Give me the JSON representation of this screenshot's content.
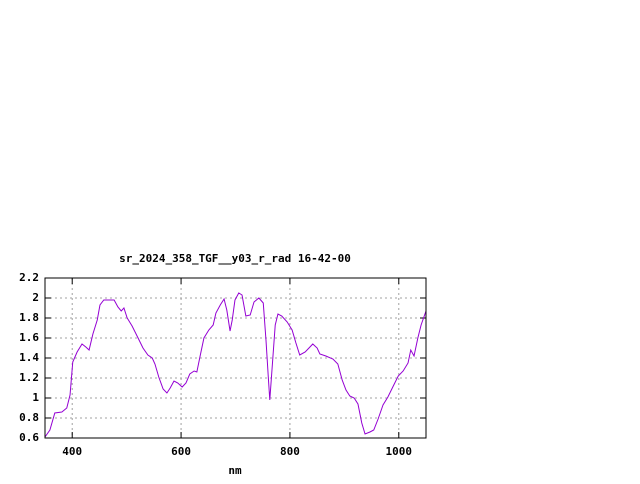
{
  "chart_data": {
    "type": "line",
    "title": "sr_2024_358_TGF__y03_r_rad 16-42-00",
    "x_label": "nm",
    "x": [
      350,
      359,
      368,
      381,
      390,
      396,
      401,
      409,
      418,
      425,
      431,
      438,
      446,
      451,
      458,
      469,
      477,
      484,
      490,
      495,
      501,
      510,
      521,
      530,
      539,
      547,
      552,
      559,
      567,
      574,
      580,
      587,
      594,
      602,
      609,
      616,
      624,
      629,
      635,
      642,
      651,
      659,
      664,
      672,
      679,
      684,
      690,
      694,
      699,
      706,
      712,
      719,
      727,
      734,
      743,
      751,
      756,
      760,
      763,
      767,
      773,
      778,
      785,
      795,
      804,
      811,
      818,
      828,
      835,
      842,
      850,
      855,
      866,
      879,
      888,
      896,
      903,
      910,
      918,
      925,
      932,
      938,
      947,
      954,
      962,
      971,
      980,
      989,
      999,
      1008,
      1017,
      1022,
      1028,
      1035,
      1041,
      1050
    ],
    "values": [
      0.61,
      0.68,
      0.85,
      0.86,
      0.9,
      1.03,
      1.36,
      1.46,
      1.54,
      1.51,
      1.48,
      1.64,
      1.78,
      1.93,
      1.98,
      1.98,
      1.98,
      1.91,
      1.87,
      1.9,
      1.8,
      1.72,
      1.6,
      1.5,
      1.43,
      1.4,
      1.34,
      1.21,
      1.09,
      1.05,
      1.1,
      1.17,
      1.15,
      1.11,
      1.15,
      1.24,
      1.27,
      1.26,
      1.42,
      1.6,
      1.68,
      1.73,
      1.85,
      1.93,
      1.99,
      1.88,
      1.67,
      1.78,
      1.98,
      2.05,
      2.03,
      1.82,
      1.83,
      1.96,
      2.0,
      1.95,
      1.58,
      1.23,
      0.98,
      1.28,
      1.73,
      1.84,
      1.82,
      1.76,
      1.68,
      1.55,
      1.43,
      1.46,
      1.5,
      1.54,
      1.5,
      1.44,
      1.42,
      1.39,
      1.34,
      1.18,
      1.08,
      1.02,
      1.0,
      0.94,
      0.75,
      0.64,
      0.66,
      0.68,
      0.79,
      0.93,
      1.01,
      1.11,
      1.22,
      1.27,
      1.35,
      1.48,
      1.42,
      1.6,
      1.73,
      1.87
    ],
    "color": "#9400d3",
    "xlim": [
      350,
      1050
    ],
    "xticks": [
      400,
      600,
      800,
      1000
    ],
    "ylim": [
      0.6,
      2.2
    ],
    "yticks": [
      0.6,
      0.8,
      1,
      1.2,
      1.4,
      1.6,
      1.8,
      2,
      2.2
    ],
    "grid": true
  }
}
